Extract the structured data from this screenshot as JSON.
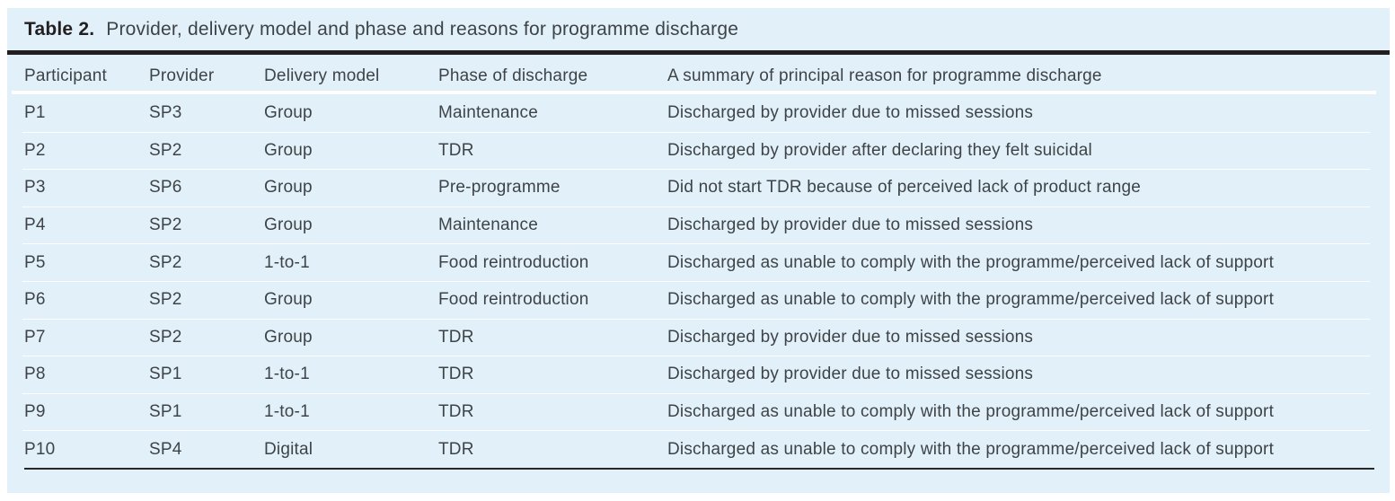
{
  "table": {
    "label": "Table 2.",
    "caption": "Provider, delivery model and phase and reasons for programme discharge",
    "columns": [
      "Participant",
      "Provider",
      "Delivery model",
      "Phase of discharge",
      "A summary of principal reason for programme discharge"
    ],
    "rows": [
      [
        "P1",
        "SP3",
        "Group",
        "Maintenance",
        "Discharged by provider due to missed sessions"
      ],
      [
        "P2",
        "SP2",
        "Group",
        "TDR",
        "Discharged by provider after declaring they felt suicidal"
      ],
      [
        "P3",
        "SP6",
        "Group",
        "Pre-programme",
        "Did not start TDR because of perceived lack of product range"
      ],
      [
        "P4",
        "SP2",
        "Group",
        "Maintenance",
        "Discharged by provider due to missed sessions"
      ],
      [
        "P5",
        "SP2",
        "1-to-1",
        "Food reintroduction",
        "Discharged as unable to comply with the programme/perceived lack of support"
      ],
      [
        "P6",
        "SP2",
        "Group",
        "Food reintroduction",
        "Discharged as unable to comply with the programme/perceived lack of support"
      ],
      [
        "P7",
        "SP2",
        "Group",
        "TDR",
        "Discharged by provider due to missed sessions"
      ],
      [
        "P8",
        "SP1",
        "1-to-1",
        "TDR",
        "Discharged by provider due to missed sessions"
      ],
      [
        "P9",
        "SP1",
        "1-to-1",
        "TDR",
        "Discharged as unable to comply with the programme/perceived lack of support"
      ],
      [
        "P10",
        "SP4",
        "Digital",
        "TDR",
        "Discharged as unable to comply with the programme/perceived lack of support"
      ]
    ],
    "colors": {
      "table_background": "#e2f1f9",
      "heavy_rule": "#231f20",
      "text": "#3e4347",
      "label_text": "#231f20",
      "row_separator": "#ffffff",
      "bottom_rule": "#2a2627"
    }
  }
}
